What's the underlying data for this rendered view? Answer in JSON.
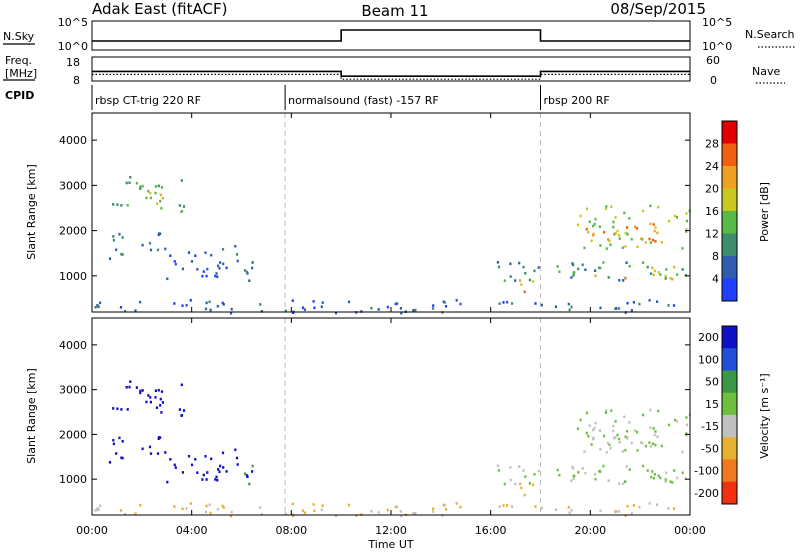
{
  "header": {
    "title": "Adak East (fitACF)",
    "beam": "Beam 11",
    "date": "08/Sep/2015"
  },
  "left_labels": {
    "nsky": "N.Sky",
    "freq": "Freq.",
    "freq_unit": "[MHz]",
    "cpid": "CPID"
  },
  "right_labels": {
    "nsearch": "N.Search",
    "nave": "Nave"
  },
  "scale_labels": {
    "noise_top_left": "10^5",
    "noise_bottom_left": "10^0",
    "noise_top_right": "10^5",
    "noise_bottom_right": "10^0",
    "freq_top": "18",
    "freq_bottom": "8",
    "nave_top": "60",
    "nave_bottom": "0"
  },
  "cpid_segments": [
    {
      "label": "rbsp CT-trig 220 RF",
      "start_hour": 0
    },
    {
      "label": "normalsound (fast) -157 RF",
      "start_hour": 7.75
    },
    {
      "label": "rbsp 200 RF",
      "start_hour": 18
    }
  ],
  "x_axis": {
    "label": "Time UT",
    "range_hours": [
      0,
      24
    ],
    "ticks": [
      "00:00",
      "04:00",
      "08:00",
      "12:00",
      "16:00",
      "20:00",
      "00:00"
    ]
  },
  "panels": {
    "power": {
      "ylabel": "Slant Range [km]",
      "yticks": [
        "1000",
        "2000",
        "3000",
        "4000"
      ],
      "colorbar_label": "Power [dB]",
      "colorbar_ticks": [
        "4",
        "8",
        "12",
        "16",
        "20",
        "24",
        "28"
      ],
      "colors": [
        "#1f3fff",
        "#2e5db0",
        "#3c8c6e",
        "#58b848",
        "#c8c820",
        "#f0a020",
        "#f06010",
        "#e00000"
      ]
    },
    "velocity": {
      "ylabel": "Slant Range [km]",
      "yticks": [
        "1000",
        "2000",
        "3000",
        "4000"
      ],
      "colorbar_label": "Velocity [m s⁻¹]",
      "colorbar_ticks": [
        "200",
        "100",
        "50",
        "15",
        "-15",
        "-50",
        "-100",
        "-200"
      ],
      "colors": [
        "#1010c8",
        "#2050d8",
        "#3c9848",
        "#70c040",
        "#c0c0c0",
        "#e8b030",
        "#f07820",
        "#f03010"
      ]
    }
  },
  "chart_data": {
    "type": "heatmap",
    "title": "Adak East (fitACF)",
    "subtitle": "Beam 11",
    "xlabel": "Time UT",
    "ylabel": "Slant Range [km]",
    "x_range_hours": [
      0,
      24
    ],
    "y_range_km": [
      200,
      4600
    ],
    "noise_levels": [
      {
        "from_hour": 0,
        "to_hour": 10,
        "nsky_level": "low"
      },
      {
        "from_hour": 10,
        "to_hour": 18,
        "nsky_level": "high"
      },
      {
        "from_hour": 18,
        "to_hour": 24,
        "nsky_level": "low"
      }
    ],
    "frequency_mhz": [
      {
        "from_hour": 0,
        "to_hour": 10,
        "value": 12
      },
      {
        "from_hour": 10,
        "to_hour": 18,
        "value": 10
      },
      {
        "from_hour": 18,
        "to_hour": 24,
        "value": 12
      }
    ],
    "scatter_regions": [
      {
        "t0": 0.6,
        "t1": 2.8,
        "r0": 1400,
        "r1": 2000,
        "power": 10,
        "velocity": 200
      },
      {
        "t0": 2.8,
        "t1": 6.6,
        "r0": 950,
        "r1": 1700,
        "power": 8,
        "velocity": 200
      },
      {
        "t0": 0.8,
        "t1": 2.9,
        "r0": 2500,
        "r1": 3300,
        "power": 14,
        "velocity": 200
      },
      {
        "t0": 1.6,
        "t1": 2.9,
        "r0": 2500,
        "r1": 2900,
        "power": 20,
        "velocity": 200
      },
      {
        "t0": 3.2,
        "t1": 3.7,
        "r0": 2400,
        "r1": 3300,
        "power": 14,
        "velocity": 200
      },
      {
        "t0": 6.1,
        "t1": 6.7,
        "r0": 900,
        "r1": 1400,
        "power": 8,
        "velocity": 50
      },
      {
        "t0": 16.0,
        "t1": 24.0,
        "r0": 900,
        "r1": 1350,
        "power": 12,
        "velocity": 0
      },
      {
        "t0": 16.8,
        "t1": 17.7,
        "r0": 650,
        "r1": 1100,
        "power": 24,
        "velocity": -50
      },
      {
        "t0": 19.4,
        "t1": 24.0,
        "r0": 1600,
        "r1": 2600,
        "power": 18,
        "velocity": 0
      },
      {
        "t0": 19.8,
        "t1": 22.8,
        "r0": 1700,
        "r1": 2200,
        "power": 26,
        "velocity": 0
      },
      {
        "t0": 19.8,
        "t1": 23.5,
        "r0": 950,
        "r1": 1250,
        "power": 20,
        "velocity": 0
      },
      {
        "t0": 0,
        "t1": 24,
        "r0": 200,
        "r1": 500,
        "power": 8,
        "velocity": -30
      }
    ]
  }
}
